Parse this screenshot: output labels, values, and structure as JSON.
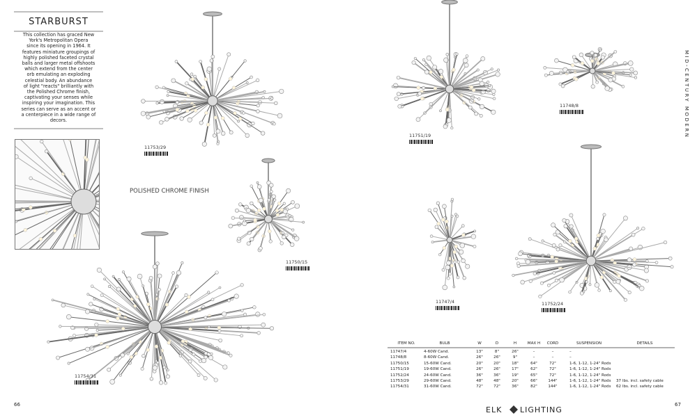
{
  "header": {
    "title": "STARBURST",
    "description": [
      "This collection has graced New",
      "York's Metropolitan Opera",
      "since its opening in 1964. It",
      "features miniature groupings of",
      "highly polished faceted crystal",
      "balls and larger metal offshoots",
      "which extend from the center",
      "orb emulating an exploding",
      "celestial body. An abundance",
      "of light \"reacts\" brilliantly with",
      "the Polished Chrome finish,",
      "captivating your senses while",
      "inspiring your imagination. This",
      "series can serve as an accent or",
      "a centerpiece in a wide range of",
      "decors."
    ],
    "finish": "POLISHED CHROME FINISH",
    "section": "MID-CENTURY MODERN"
  },
  "products": [
    "11753/29",
    "11754/31",
    "11750/15",
    "11751/19",
    "11748/8",
    "11747/4",
    "11752/24"
  ],
  "table": {
    "columns": [
      "ITEM NO.",
      "BULB",
      "W",
      "D",
      "H",
      "MAX H",
      "CORD",
      "SUSPENSION",
      "DETAILS"
    ],
    "rows": [
      [
        "11747/4",
        "4-60W Cand.",
        "13\"",
        "8\"",
        "26\"",
        "–",
        "–",
        "–"
      ],
      [
        "11748/8",
        "8-60W Cand.",
        "26\"",
        "26\"",
        "9\"",
        "–",
        "–",
        "–"
      ],
      [
        "11750/15",
        "15-60W Cand.",
        "20\"",
        "20\"",
        "18\"",
        "64\"",
        "72\"",
        "1-6, 1-12, 1-24\" Rods"
      ],
      [
        "11751/19",
        "19-60W Cand.",
        "26\"",
        "26\"",
        "17\"",
        "62\"",
        "72\"",
        "1-6, 1-12, 1-24\" Rods"
      ],
      [
        "11752/24",
        "24-60W Cand.",
        "36\"",
        "36\"",
        "19\"",
        "65\"",
        "72\"",
        "1-6, 1-12, 1-24\" Rods"
      ],
      [
        "11753/29",
        "29-60W Cand.",
        "48\"",
        "48\"",
        "20\"",
        "66\"",
        "144\"",
        "1-6, 1-12, 1-24\" Rods",
        "37 lbs. incl. safety cable"
      ],
      [
        "11754/31",
        "31-60W Cand.",
        "72\"",
        "72\"",
        "36\"",
        "82\"",
        "144\"",
        "1-6, 1-12, 1-24\" Rods",
        "62 lbs. incl. safety cable"
      ]
    ]
  },
  "footer": {
    "page_left": "66",
    "page_right": "67",
    "brand": [
      "ELK",
      "LIGHTING"
    ]
  }
}
